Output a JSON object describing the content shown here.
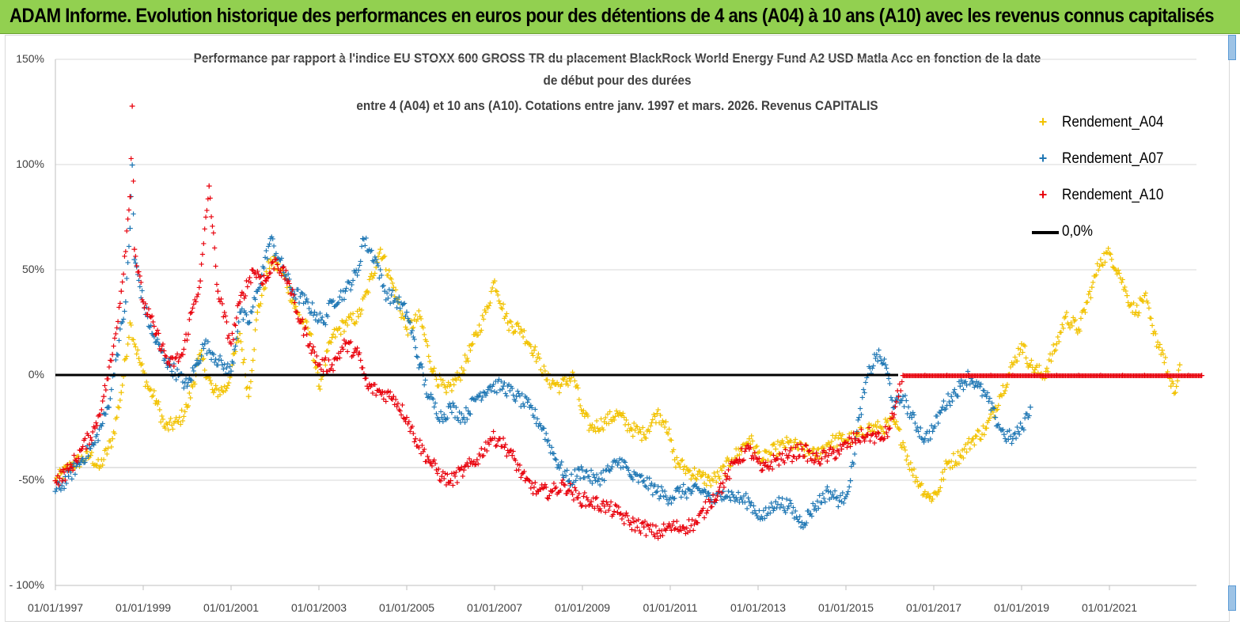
{
  "banner": {
    "title": "ADAM Informe. Evolution historique des performances en euros pour des détentions de 4 ans (A04) à 10 ans (A10) avec les revenus connus capitalisés"
  },
  "chart_data": {
    "type": "scatter",
    "title_lines": [
      "Performance par rapport à l'indice EU STOXX 600 GROSS TR  du placement BlackRock World Energy Fund A2 USD Matla Acc en fonction de la date",
      "de début pour des durées",
      "entre 4 (A04) et 10 ans (A10). Cotations entre janv. 1997 et mars. 2026. Revenus CAPITALIS"
    ],
    "x_axis": {
      "min_year": 1997,
      "max_year": 2023.2,
      "tick_years": [
        1997,
        1999,
        2001,
        2003,
        2005,
        2007,
        2009,
        2011,
        2013,
        2015,
        2017,
        2019,
        2021
      ],
      "tick_labels": [
        "01/01/1997",
        "01/01/1999",
        "01/01/2001",
        "01/01/2003",
        "01/01/2005",
        "01/01/2007",
        "01/01/2009",
        "01/01/2011",
        "01/01/2013",
        "01/01/2015",
        "01/01/2017",
        "01/01/2019",
        "01/01/2021"
      ]
    },
    "y_axis": {
      "min": -100,
      "max": 150,
      "tick_values": [
        150,
        100,
        50,
        0,
        -50,
        -100
      ],
      "tick_labels": [
        "150%",
        "100%",
        "50%",
        "0%",
        "-50%",
        "- 100%"
      ]
    },
    "reference_line": {
      "name": "0,0%",
      "value": 0,
      "color": "#000000"
    },
    "series": [
      {
        "name": "Rendement_A04",
        "color": "#f2c200",
        "points": [
          [
            1997.0,
            -50
          ],
          [
            1997.4,
            -42
          ],
          [
            1997.8,
            -38
          ],
          [
            1998.0,
            -44
          ],
          [
            1998.3,
            -30
          ],
          [
            1998.5,
            -8
          ],
          [
            1998.7,
            25
          ],
          [
            1998.9,
            8
          ],
          [
            1999.1,
            -5
          ],
          [
            1999.3,
            -12
          ],
          [
            1999.5,
            -25
          ],
          [
            1999.8,
            -22
          ],
          [
            2000.0,
            -15
          ],
          [
            2000.3,
            10
          ],
          [
            2000.6,
            -8
          ],
          [
            2000.9,
            -6
          ],
          [
            2001.2,
            20
          ],
          [
            2001.4,
            -10
          ],
          [
            2001.6,
            30
          ],
          [
            2001.9,
            55
          ],
          [
            2002.2,
            48
          ],
          [
            2002.5,
            30
          ],
          [
            2002.8,
            20
          ],
          [
            2003.0,
            -5
          ],
          [
            2003.3,
            18
          ],
          [
            2003.6,
            25
          ],
          [
            2003.9,
            28
          ],
          [
            2004.1,
            40
          ],
          [
            2004.4,
            60
          ],
          [
            2004.7,
            42
          ],
          [
            2005.0,
            22
          ],
          [
            2005.3,
            28
          ],
          [
            2005.6,
            2
          ],
          [
            2005.9,
            -8
          ],
          [
            2006.2,
            0
          ],
          [
            2006.5,
            15
          ],
          [
            2006.8,
            30
          ],
          [
            2007.0,
            45
          ],
          [
            2007.3,
            25
          ],
          [
            2007.6,
            22
          ],
          [
            2007.9,
            12
          ],
          [
            2008.2,
            -2
          ],
          [
            2008.5,
            -5
          ],
          [
            2008.8,
            0
          ],
          [
            2009.0,
            -18
          ],
          [
            2009.2,
            -25
          ],
          [
            2009.5,
            -22
          ],
          [
            2009.8,
            -18
          ],
          [
            2010.1,
            -25
          ],
          [
            2010.4,
            -28
          ],
          [
            2010.7,
            -18
          ],
          [
            2010.9,
            -22
          ],
          [
            2011.1,
            -40
          ],
          [
            2011.4,
            -45
          ],
          [
            2011.7,
            -48
          ],
          [
            2011.9,
            -50
          ],
          [
            2012.1,
            -48
          ],
          [
            2012.4,
            -40
          ],
          [
            2012.6,
            -35
          ],
          [
            2012.8,
            -30
          ],
          [
            2013.1,
            -40
          ],
          [
            2013.4,
            -35
          ],
          [
            2013.7,
            -32
          ],
          [
            2014.0,
            -35
          ],
          [
            2014.3,
            -38
          ],
          [
            2014.6,
            -32
          ],
          [
            2014.9,
            -30
          ],
          [
            2015.2,
            -30
          ],
          [
            2015.5,
            -25
          ],
          [
            2015.8,
            -25
          ],
          [
            2016.1,
            -22
          ],
          [
            2016.3,
            -32
          ],
          [
            2016.5,
            -45
          ],
          [
            2016.7,
            -52
          ],
          [
            2016.9,
            -58
          ],
          [
            2017.1,
            -55
          ],
          [
            2017.3,
            -42
          ],
          [
            2017.6,
            -38
          ],
          [
            2017.9,
            -30
          ],
          [
            2018.2,
            -25
          ],
          [
            2018.5,
            -10
          ],
          [
            2018.8,
            5
          ],
          [
            2019.0,
            15
          ],
          [
            2019.2,
            5
          ],
          [
            2019.5,
            0
          ],
          [
            2019.8,
            15
          ],
          [
            2020.0,
            28
          ],
          [
            2020.3,
            22
          ],
          [
            2020.6,
            42
          ],
          [
            2020.8,
            55
          ],
          [
            2021.0,
            58
          ],
          [
            2021.2,
            50
          ],
          [
            2021.4,
            38
          ],
          [
            2021.6,
            30
          ],
          [
            2021.8,
            38
          ],
          [
            2022.0,
            20
          ],
          [
            2022.2,
            12
          ],
          [
            2022.4,
            -5
          ],
          [
            2022.5,
            -8
          ],
          [
            2022.6,
            5
          ]
        ]
      },
      {
        "name": "Rendement_A07",
        "color": "#1f77b4",
        "points": [
          [
            1997.0,
            -55
          ],
          [
            1997.3,
            -48
          ],
          [
            1997.6,
            -40
          ],
          [
            1997.9,
            -32
          ],
          [
            1998.2,
            -15
          ],
          [
            1998.4,
            10
          ],
          [
            1998.6,
            35
          ],
          [
            1998.7,
            70
          ],
          [
            1998.75,
            100
          ],
          [
            1998.8,
            55
          ],
          [
            1999.0,
            35
          ],
          [
            1999.2,
            20
          ],
          [
            1999.5,
            8
          ],
          [
            1999.8,
            0
          ],
          [
            2000.0,
            -5
          ],
          [
            2000.2,
            5
          ],
          [
            2000.4,
            15
          ],
          [
            2000.6,
            10
          ],
          [
            2000.8,
            5
          ],
          [
            2001.0,
            2
          ],
          [
            2001.2,
            30
          ],
          [
            2001.4,
            25
          ],
          [
            2001.6,
            40
          ],
          [
            2001.9,
            65
          ],
          [
            2002.1,
            55
          ],
          [
            2002.4,
            40
          ],
          [
            2002.7,
            35
          ],
          [
            2002.9,
            30
          ],
          [
            2003.1,
            25
          ],
          [
            2003.3,
            35
          ],
          [
            2003.6,
            40
          ],
          [
            2003.9,
            50
          ],
          [
            2004.0,
            65
          ],
          [
            2004.3,
            55
          ],
          [
            2004.5,
            40
          ],
          [
            2004.8,
            35
          ],
          [
            2005.0,
            30
          ],
          [
            2005.3,
            5
          ],
          [
            2005.5,
            -10
          ],
          [
            2005.8,
            -20
          ],
          [
            2006.0,
            -15
          ],
          [
            2006.3,
            -20
          ],
          [
            2006.6,
            -10
          ],
          [
            2006.9,
            -5
          ],
          [
            2007.2,
            -5
          ],
          [
            2007.5,
            -10
          ],
          [
            2007.8,
            -15
          ],
          [
            2008.1,
            -25
          ],
          [
            2008.4,
            -40
          ],
          [
            2008.7,
            -50
          ],
          [
            2009.0,
            -45
          ],
          [
            2009.3,
            -50
          ],
          [
            2009.6,
            -45
          ],
          [
            2009.9,
            -40
          ],
          [
            2010.1,
            -48
          ],
          [
            2010.4,
            -50
          ],
          [
            2010.7,
            -55
          ],
          [
            2011.0,
            -58
          ],
          [
            2011.2,
            -55
          ],
          [
            2011.5,
            -55
          ],
          [
            2011.8,
            -55
          ],
          [
            2012.0,
            -60
          ],
          [
            2012.2,
            -55
          ],
          [
            2012.5,
            -58
          ],
          [
            2012.8,
            -60
          ],
          [
            2013.1,
            -68
          ],
          [
            2013.4,
            -60
          ],
          [
            2013.7,
            -62
          ],
          [
            2014.0,
            -70
          ],
          [
            2014.3,
            -62
          ],
          [
            2014.6,
            -55
          ],
          [
            2014.9,
            -60
          ],
          [
            2015.1,
            -50
          ],
          [
            2015.3,
            -20
          ],
          [
            2015.5,
            0
          ],
          [
            2015.7,
            10
          ],
          [
            2015.9,
            5
          ],
          [
            2016.1,
            -15
          ],
          [
            2016.3,
            -10
          ],
          [
            2016.5,
            -20
          ],
          [
            2016.8,
            -30
          ],
          [
            2017.0,
            -25
          ],
          [
            2017.2,
            -15
          ],
          [
            2017.4,
            -10
          ],
          [
            2017.6,
            -5
          ],
          [
            2017.8,
            0
          ],
          [
            2018.0,
            -5
          ],
          [
            2018.2,
            -10
          ],
          [
            2018.4,
            -20
          ],
          [
            2018.6,
            -28
          ],
          [
            2018.8,
            -30
          ],
          [
            2019.0,
            -25
          ],
          [
            2019.2,
            -15
          ]
        ]
      },
      {
        "name": "Rendement_A10",
        "color": "#e8000b",
        "points": [
          [
            1997.0,
            -50
          ],
          [
            1997.3,
            -45
          ],
          [
            1997.6,
            -35
          ],
          [
            1997.9,
            -25
          ],
          [
            1998.1,
            -10
          ],
          [
            1998.3,
            10
          ],
          [
            1998.5,
            40
          ],
          [
            1998.7,
            85
          ],
          [
            1998.75,
            128
          ],
          [
            1998.8,
            60
          ],
          [
            1999.0,
            35
          ],
          [
            1999.3,
            20
          ],
          [
            1999.6,
            5
          ],
          [
            1999.9,
            10
          ],
          [
            2000.1,
            30
          ],
          [
            2000.3,
            45
          ],
          [
            2000.5,
            90
          ],
          [
            2000.7,
            40
          ],
          [
            2001.0,
            15
          ],
          [
            2001.2,
            35
          ],
          [
            2001.5,
            50
          ],
          [
            2001.8,
            45
          ],
          [
            2002.0,
            55
          ],
          [
            2002.3,
            45
          ],
          [
            2002.5,
            30
          ],
          [
            2002.8,
            15
          ],
          [
            2003.0,
            5
          ],
          [
            2003.3,
            5
          ],
          [
            2003.6,
            15
          ],
          [
            2003.9,
            10
          ],
          [
            2004.1,
            -5
          ],
          [
            2004.4,
            -8
          ],
          [
            2004.7,
            -10
          ],
          [
            2005.0,
            -20
          ],
          [
            2005.2,
            -30
          ],
          [
            2005.5,
            -40
          ],
          [
            2005.8,
            -48
          ],
          [
            2006.0,
            -50
          ],
          [
            2006.3,
            -45
          ],
          [
            2006.6,
            -40
          ],
          [
            2006.9,
            -30
          ],
          [
            2007.1,
            -30
          ],
          [
            2007.4,
            -38
          ],
          [
            2007.7,
            -50
          ],
          [
            2008.0,
            -55
          ],
          [
            2008.3,
            -55
          ],
          [
            2008.6,
            -52
          ],
          [
            2008.9,
            -58
          ],
          [
            2009.2,
            -60
          ],
          [
            2009.5,
            -62
          ],
          [
            2009.8,
            -65
          ],
          [
            2010.1,
            -70
          ],
          [
            2010.4,
            -72
          ],
          [
            2010.7,
            -75
          ],
          [
            2011.0,
            -72
          ],
          [
            2011.3,
            -72
          ],
          [
            2011.6,
            -70
          ],
          [
            2011.9,
            -60
          ],
          [
            2012.1,
            -55
          ],
          [
            2012.3,
            -48
          ],
          [
            2012.5,
            -40
          ],
          [
            2012.8,
            -35
          ],
          [
            2013.1,
            -45
          ],
          [
            2013.4,
            -40
          ],
          [
            2013.7,
            -38
          ],
          [
            2014.0,
            -35
          ],
          [
            2014.3,
            -40
          ],
          [
            2014.6,
            -38
          ],
          [
            2014.9,
            -35
          ],
          [
            2015.2,
            -30
          ],
          [
            2015.5,
            -28
          ],
          [
            2015.8,
            -30
          ],
          [
            2016.0,
            -25
          ],
          [
            2016.3,
            0
          ],
          [
            2016.8,
            0
          ],
          [
            2017.3,
            0
          ],
          [
            2017.8,
            0
          ],
          [
            2018.3,
            0
          ],
          [
            2018.8,
            0
          ],
          [
            2019.3,
            0
          ],
          [
            2019.8,
            0
          ],
          [
            2020.3,
            0
          ],
          [
            2020.8,
            0
          ],
          [
            2021.3,
            0
          ],
          [
            2021.8,
            0
          ],
          [
            2022.3,
            0
          ],
          [
            2022.8,
            0
          ],
          [
            2023.1,
            0
          ]
        ]
      }
    ]
  },
  "legend": {
    "items": [
      {
        "label": "Rendement_A04",
        "mark": "+"
      },
      {
        "label": "Rendement_A07",
        "mark": "+"
      },
      {
        "label": "Rendement_A10",
        "mark": "+"
      },
      {
        "label": "0,0%",
        "mark": "line"
      }
    ]
  }
}
